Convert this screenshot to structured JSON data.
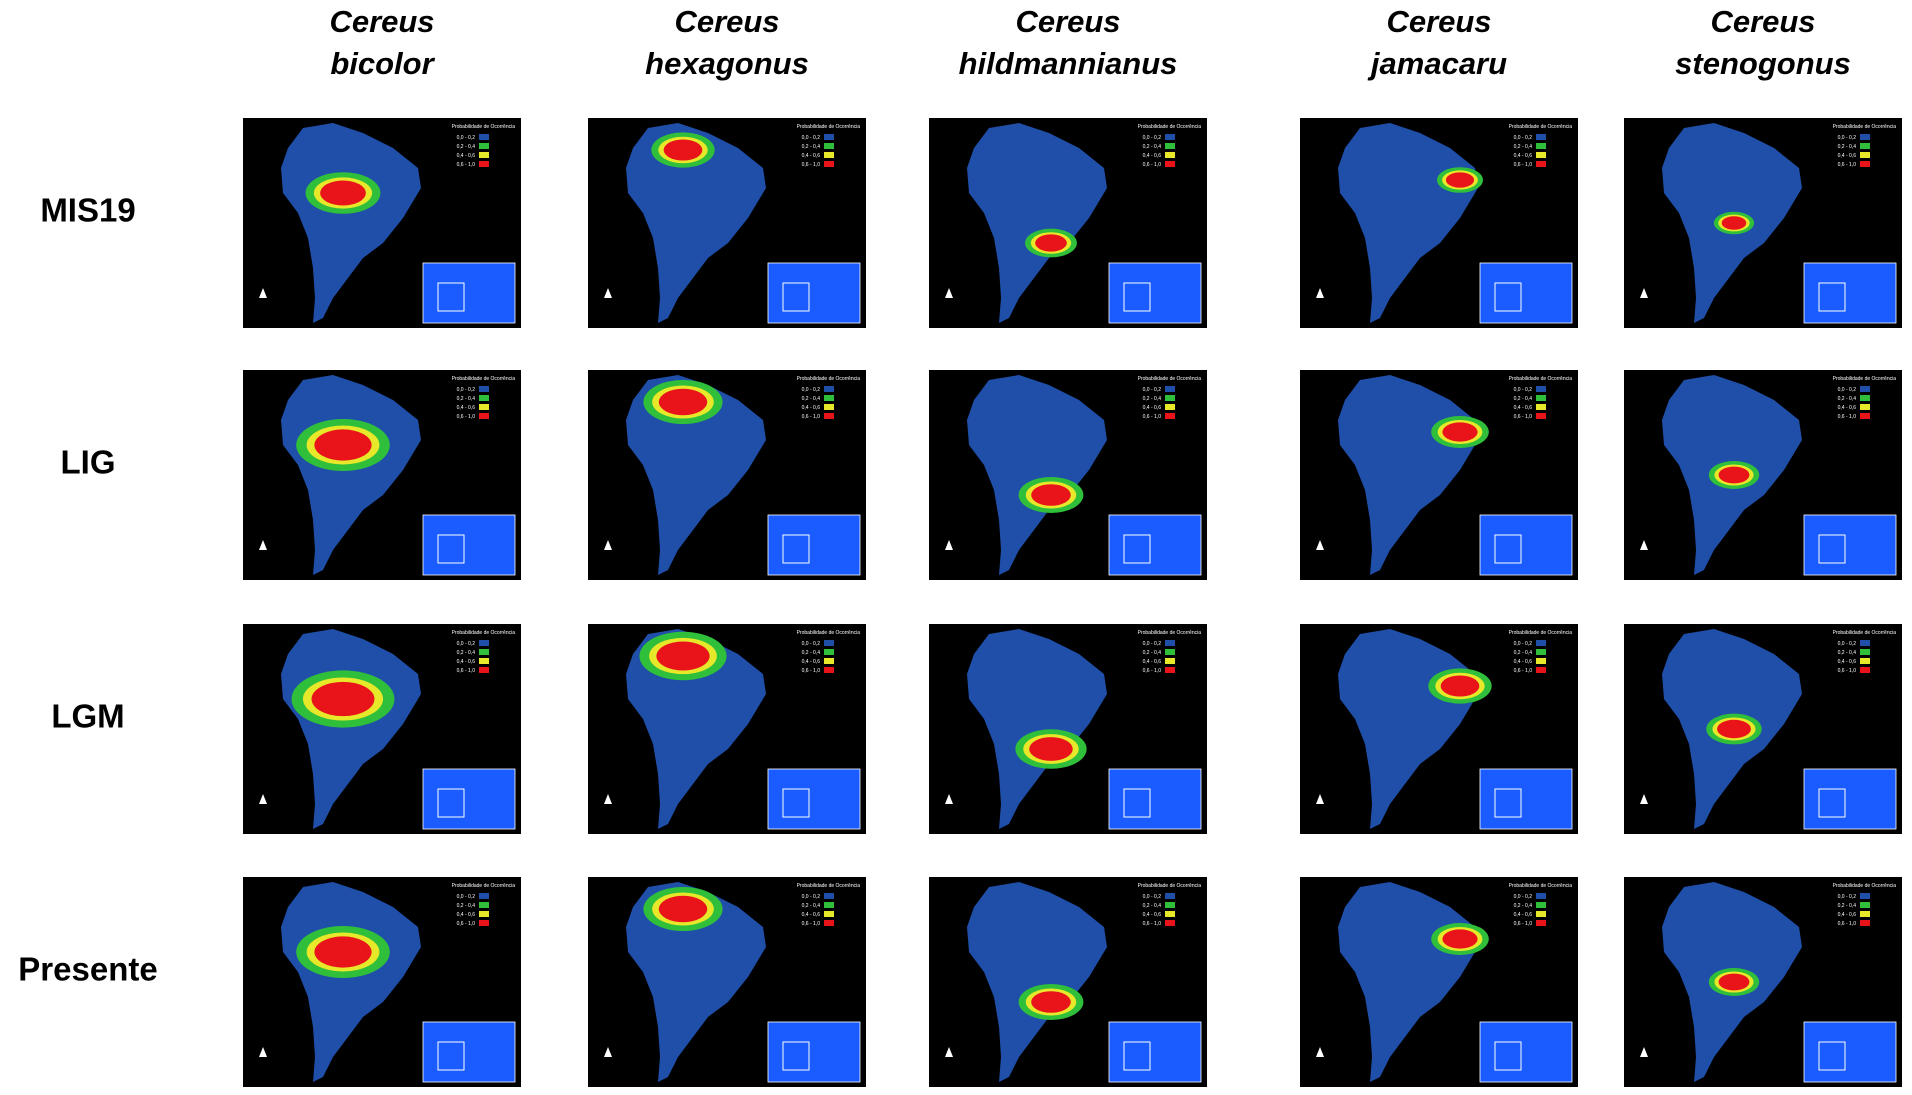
{
  "columns": [
    {
      "genus": "Cereus",
      "species": "bicolor"
    },
    {
      "genus": "Cereus",
      "species": "hexagonus"
    },
    {
      "genus": "Cereus",
      "species": "hildmannianus"
    },
    {
      "genus": "Cereus",
      "species": "jamacaru"
    },
    {
      "genus": "Cereus",
      "species": "stenogonus"
    }
  ],
  "rows": [
    "MIS19",
    "LIG",
    "LGM",
    "Presente"
  ],
  "legend": {
    "title": "Probabilidade de Ocorrência",
    "classes": [
      {
        "label": "0,0 - 0,2",
        "color": "#1f4fa8"
      },
      {
        "label": "0,2 - 0,4",
        "color": "#2fbf3a"
      },
      {
        "label": "0,4 - 0,6",
        "color": "#e8e82a"
      },
      {
        "label": "0,6 - 1,0",
        "color": "#e8141a"
      }
    ]
  }
}
